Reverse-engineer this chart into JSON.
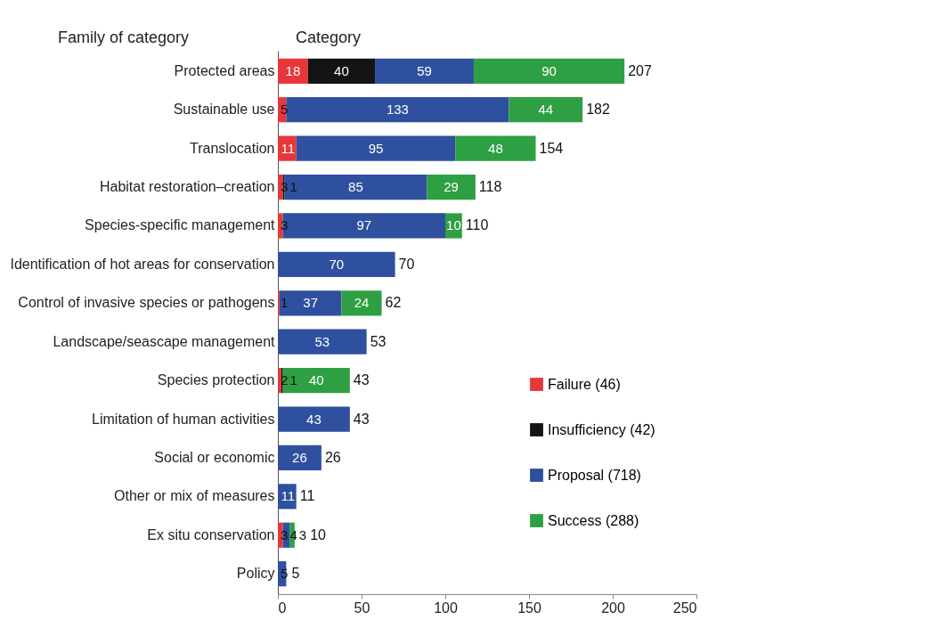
{
  "chart_data": {
    "type": "bar",
    "orientation": "horizontal",
    "stacked": true,
    "data_labels": true,
    "legend": "right",
    "grid": false,
    "annotations": [
      "Family of category",
      "Category"
    ],
    "categories": [
      "Protected areas",
      "Sustainable use",
      "Translocation",
      "Habitat  restoration–creation",
      "Species-specific  management",
      "Identification of hot areas for conservation",
      "Control of invasive species or pathogens",
      "Landscape/seascape management",
      "Species protection",
      "Limitation of human activities",
      "Social or economic",
      "Other or mix of measures",
      "Ex situ conservation",
      "Policy"
    ],
    "series": [
      {
        "name": "Failure (46)",
        "color": "#e8373a",
        "values": [
          18,
          5,
          11,
          3,
          3,
          null,
          1,
          null,
          2,
          null,
          null,
          null,
          3,
          null
        ]
      },
      {
        "name": "Insufficiency (42)",
        "color": "#141414",
        "values": [
          40,
          null,
          null,
          1,
          null,
          null,
          null,
          null,
          1,
          null,
          null,
          null,
          null,
          null
        ]
      },
      {
        "name": "Proposal (718)",
        "color": "#2f509e",
        "values": [
          59,
          133,
          95,
          85,
          97,
          70,
          37,
          53,
          null,
          43,
          26,
          11,
          4,
          5
        ]
      },
      {
        "name": "Success (288)",
        "color": "#2ea043",
        "values": [
          90,
          44,
          48,
          29,
          10,
          null,
          24,
          null,
          40,
          null,
          null,
          null,
          3,
          null
        ]
      }
    ],
    "totals": [
      "207",
      "182",
      "154",
      "118",
      "110",
      "70",
      "62",
      "53",
      "43",
      "43",
      "26",
      "11",
      "10",
      "5"
    ],
    "xlim": [
      0,
      250
    ],
    "xticks": [
      0,
      50,
      100,
      150,
      200,
      250
    ]
  }
}
